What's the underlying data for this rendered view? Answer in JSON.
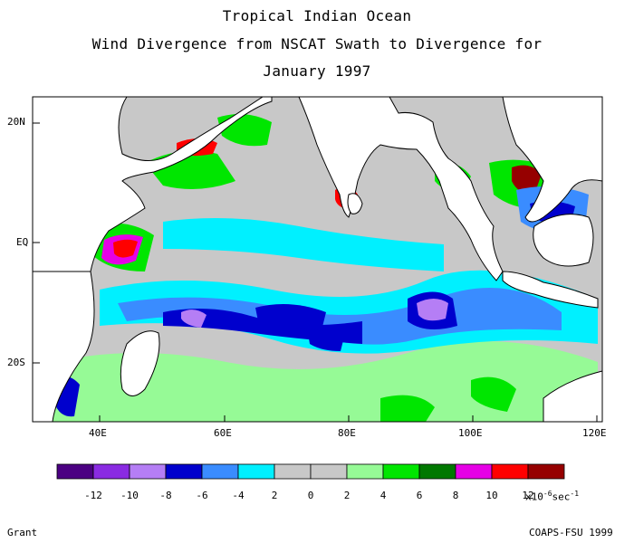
{
  "title": {
    "line1": "Tropical Indian Ocean",
    "line2": "Wind Divergence from NSCAT Swath to Divergence for",
    "line3": "January 1997"
  },
  "axes": {
    "lat_labels": [
      "20N",
      "EQ",
      "20S"
    ],
    "lon_labels": [
      "40E",
      "60E",
      "80E",
      "100E",
      "120E"
    ]
  },
  "legend": {
    "colors": [
      "#4b0082",
      "#8a2be2",
      "#b57ef5",
      "#0000cd",
      "#3a8cff",
      "#00f0ff",
      "#c8c8c8",
      "#c8c8c8",
      "#96fa96",
      "#00e600",
      "#007800",
      "#e600e6",
      "#ff0000",
      "#960000"
    ],
    "tick_labels": [
      "-12",
      "-10",
      "-8",
      "-6",
      "-4",
      "2",
      "0",
      "2",
      "4",
      "6",
      "8",
      "10",
      "12"
    ],
    "units_prefix": "x10",
    "units_exp": "-6",
    "units_suffix": "sec",
    "units_exp2": "-1"
  },
  "footer": {
    "left": "Grant",
    "right": "COAPS-FSU 1999"
  }
}
